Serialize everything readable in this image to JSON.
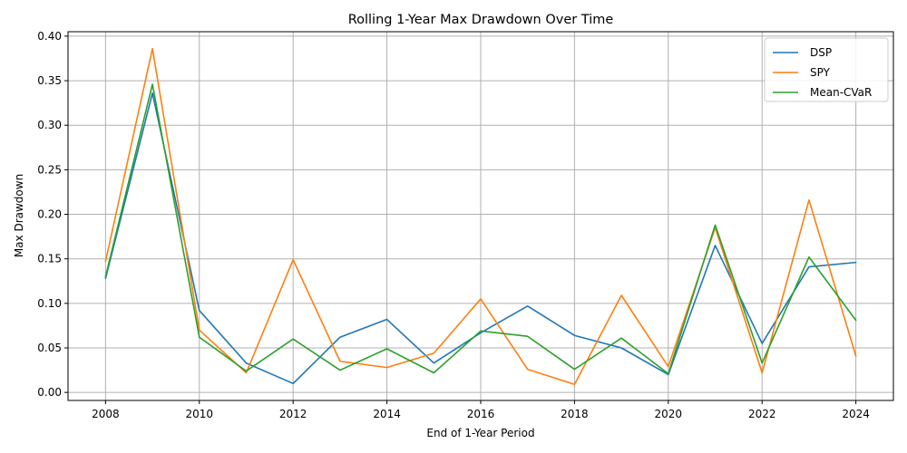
{
  "chart_data": {
    "type": "line",
    "title": "Rolling 1-Year Max Drawdown Over Time",
    "xlabel": "End of 1-Year Period",
    "ylabel": "Max Drawdown",
    "x": [
      2008,
      2009,
      2010,
      2011,
      2012,
      2013,
      2014,
      2015,
      2016,
      2017,
      2018,
      2019,
      2020,
      2021,
      2022,
      2023,
      2024
    ],
    "xlim": [
      2007.2,
      2024.8
    ],
    "ylim": [
      -0.009,
      0.405
    ],
    "xticks": [
      2008,
      2010,
      2012,
      2014,
      2016,
      2018,
      2020,
      2022,
      2024
    ],
    "yticks": [
      0.0,
      0.05,
      0.1,
      0.15,
      0.2,
      0.25,
      0.3,
      0.35,
      0.4
    ],
    "ytick_labels": [
      "0.00",
      "0.05",
      "0.10",
      "0.15",
      "0.20",
      "0.25",
      "0.30",
      "0.35",
      "0.40"
    ],
    "grid": true,
    "legend_position": "top-right",
    "series": [
      {
        "name": "DSP",
        "color": "#1f77b4",
        "values": [
          0.128,
          0.336,
          0.092,
          0.033,
          0.01,
          0.062,
          0.082,
          0.033,
          0.067,
          0.097,
          0.064,
          0.05,
          0.02,
          0.165,
          0.055,
          0.141,
          0.146
        ]
      },
      {
        "name": "SPY",
        "color": "#ff7f0e",
        "values": [
          0.147,
          0.386,
          0.07,
          0.022,
          0.149,
          0.035,
          0.028,
          0.044,
          0.105,
          0.026,
          0.009,
          0.109,
          0.029,
          0.185,
          0.022,
          0.216,
          0.041
        ]
      },
      {
        "name": "Mean-CVaR",
        "color": "#2ca02c",
        "values": [
          0.13,
          0.346,
          0.062,
          0.024,
          0.06,
          0.025,
          0.049,
          0.022,
          0.069,
          0.063,
          0.026,
          0.061,
          0.021,
          0.188,
          0.033,
          0.152,
          0.081
        ]
      }
    ]
  }
}
